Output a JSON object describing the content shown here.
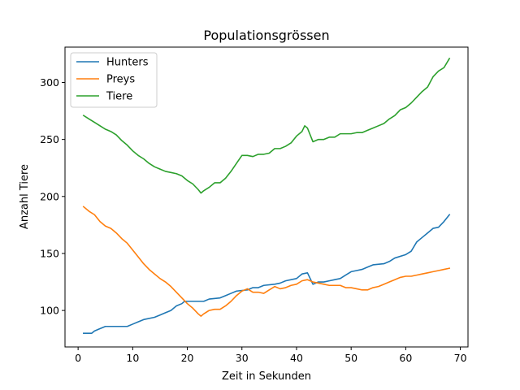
{
  "chart_data": {
    "type": "line",
    "title": "Populationsgrössen",
    "xlabel": "Zeit in Sekunden",
    "ylabel": "Anzahl Tiere",
    "xlim": [
      -2.4,
      71.4
    ],
    "ylim": [
      68,
      331
    ],
    "xticks": [
      0,
      10,
      20,
      30,
      40,
      50,
      60,
      70
    ],
    "yticks": [
      100,
      150,
      200,
      250,
      300
    ],
    "xtick_labels": [
      "0",
      "10",
      "20",
      "30",
      "40",
      "50",
      "60",
      "70"
    ],
    "ytick_labels": [
      "100",
      "150",
      "200",
      "250",
      "300"
    ],
    "grid": false,
    "legend_position": "top-left",
    "series": [
      {
        "name": "Hunters",
        "color": "#1f77b4",
        "points": [
          [
            1,
            80
          ],
          [
            2.5,
            80
          ],
          [
            3,
            82
          ],
          [
            4,
            84
          ],
          [
            5,
            86
          ],
          [
            7,
            86
          ],
          [
            9,
            86
          ],
          [
            10,
            88
          ],
          [
            11,
            90
          ],
          [
            12,
            92
          ],
          [
            14,
            94
          ],
          [
            15,
            96
          ],
          [
            16,
            98
          ],
          [
            17,
            100
          ],
          [
            18,
            104
          ],
          [
            19,
            106
          ],
          [
            19.5,
            108
          ],
          [
            20,
            108
          ],
          [
            22,
            108
          ],
          [
            23,
            108
          ],
          [
            24,
            110
          ],
          [
            26,
            111
          ],
          [
            27,
            113
          ],
          [
            28,
            115
          ],
          [
            29,
            117
          ],
          [
            31,
            118
          ],
          [
            32,
            120
          ],
          [
            33,
            120
          ],
          [
            34,
            122
          ],
          [
            36,
            123
          ],
          [
            37,
            124
          ],
          [
            38,
            126
          ],
          [
            40,
            128
          ],
          [
            41,
            132
          ],
          [
            42,
            133
          ],
          [
            43,
            123
          ],
          [
            44,
            125
          ],
          [
            45,
            125
          ],
          [
            46,
            126
          ],
          [
            47,
            127
          ],
          [
            48,
            128
          ],
          [
            49,
            131
          ],
          [
            50,
            134
          ],
          [
            51,
            135
          ],
          [
            52,
            136
          ],
          [
            53,
            138
          ],
          [
            54,
            140
          ],
          [
            56,
            141
          ],
          [
            57,
            143
          ],
          [
            58,
            146
          ],
          [
            60,
            149
          ],
          [
            61,
            152
          ],
          [
            62,
            160
          ],
          [
            63,
            164
          ],
          [
            64,
            168
          ],
          [
            65,
            172
          ],
          [
            66,
            173
          ],
          [
            67,
            178
          ],
          [
            68,
            184
          ]
        ]
      },
      {
        "name": "Preys",
        "color": "#ff7f0e",
        "points": [
          [
            1,
            191
          ],
          [
            2,
            187
          ],
          [
            3,
            184
          ],
          [
            4,
            178
          ],
          [
            5,
            174
          ],
          [
            6,
            172
          ],
          [
            7,
            168
          ],
          [
            8,
            163
          ],
          [
            9,
            159
          ],
          [
            10,
            153
          ],
          [
            11,
            147
          ],
          [
            12,
            141
          ],
          [
            13,
            136
          ],
          [
            14,
            132
          ],
          [
            15,
            128
          ],
          [
            16,
            125
          ],
          [
            17,
            121
          ],
          [
            18,
            116
          ],
          [
            19,
            111
          ],
          [
            20,
            106
          ],
          [
            21,
            102
          ],
          [
            22,
            97
          ],
          [
            22.5,
            95
          ],
          [
            23,
            97
          ],
          [
            24,
            100
          ],
          [
            25,
            101
          ],
          [
            26,
            101
          ],
          [
            27,
            104
          ],
          [
            28,
            108
          ],
          [
            29,
            113
          ],
          [
            30,
            117
          ],
          [
            31,
            119
          ],
          [
            32,
            116
          ],
          [
            33,
            116
          ],
          [
            34,
            115
          ],
          [
            35,
            118
          ],
          [
            36,
            121
          ],
          [
            37,
            119
          ],
          [
            38,
            120
          ],
          [
            39,
            122
          ],
          [
            40,
            123
          ],
          [
            41,
            126
          ],
          [
            42,
            127
          ],
          [
            43,
            125
          ],
          [
            44,
            124
          ],
          [
            45,
            123
          ],
          [
            46,
            122
          ],
          [
            47,
            122
          ],
          [
            48,
            122
          ],
          [
            49,
            120
          ],
          [
            50,
            120
          ],
          [
            51,
            119
          ],
          [
            52,
            118
          ],
          [
            53,
            118
          ],
          [
            54,
            120
          ],
          [
            55,
            121
          ],
          [
            56,
            123
          ],
          [
            57,
            125
          ],
          [
            58,
            127
          ],
          [
            59,
            129
          ],
          [
            60,
            130
          ],
          [
            61,
            130
          ],
          [
            62,
            131
          ],
          [
            63,
            132
          ],
          [
            64,
            133
          ],
          [
            65,
            134
          ],
          [
            66,
            135
          ],
          [
            67,
            136
          ],
          [
            68,
            137
          ]
        ]
      },
      {
        "name": "Tiere",
        "color": "#2ca02c",
        "points": [
          [
            1,
            271
          ],
          [
            2,
            268
          ],
          [
            3,
            265
          ],
          [
            4,
            262
          ],
          [
            5,
            259
          ],
          [
            6,
            257
          ],
          [
            7,
            254
          ],
          [
            8,
            249
          ],
          [
            9,
            245
          ],
          [
            10,
            240
          ],
          [
            11,
            236
          ],
          [
            12,
            233
          ],
          [
            13,
            229
          ],
          [
            14,
            226
          ],
          [
            15,
            224
          ],
          [
            16,
            222
          ],
          [
            17,
            221
          ],
          [
            18,
            220
          ],
          [
            19,
            218
          ],
          [
            20,
            214
          ],
          [
            21,
            211
          ],
          [
            22,
            206
          ],
          [
            22.5,
            203
          ],
          [
            23,
            205
          ],
          [
            24,
            208
          ],
          [
            25,
            212
          ],
          [
            26,
            212
          ],
          [
            27,
            216
          ],
          [
            28,
            222
          ],
          [
            29,
            229
          ],
          [
            30,
            236
          ],
          [
            31,
            236
          ],
          [
            32,
            235
          ],
          [
            33,
            237
          ],
          [
            34,
            237
          ],
          [
            35,
            238
          ],
          [
            36,
            242
          ],
          [
            37,
            242
          ],
          [
            38,
            244
          ],
          [
            39,
            247
          ],
          [
            40,
            253
          ],
          [
            41,
            257
          ],
          [
            41.5,
            262
          ],
          [
            42,
            260
          ],
          [
            43,
            248
          ],
          [
            44,
            250
          ],
          [
            45,
            250
          ],
          [
            46,
            252
          ],
          [
            47,
            252
          ],
          [
            48,
            255
          ],
          [
            49,
            255
          ],
          [
            50,
            255
          ],
          [
            51,
            256
          ],
          [
            52,
            256
          ],
          [
            53,
            258
          ],
          [
            54,
            260
          ],
          [
            55,
            262
          ],
          [
            56,
            264
          ],
          [
            57,
            268
          ],
          [
            58,
            271
          ],
          [
            59,
            276
          ],
          [
            60,
            278
          ],
          [
            61,
            282
          ],
          [
            62,
            287
          ],
          [
            63,
            292
          ],
          [
            64,
            296
          ],
          [
            65,
            305
          ],
          [
            66,
            310
          ],
          [
            67,
            313
          ],
          [
            68,
            321
          ]
        ]
      }
    ]
  }
}
